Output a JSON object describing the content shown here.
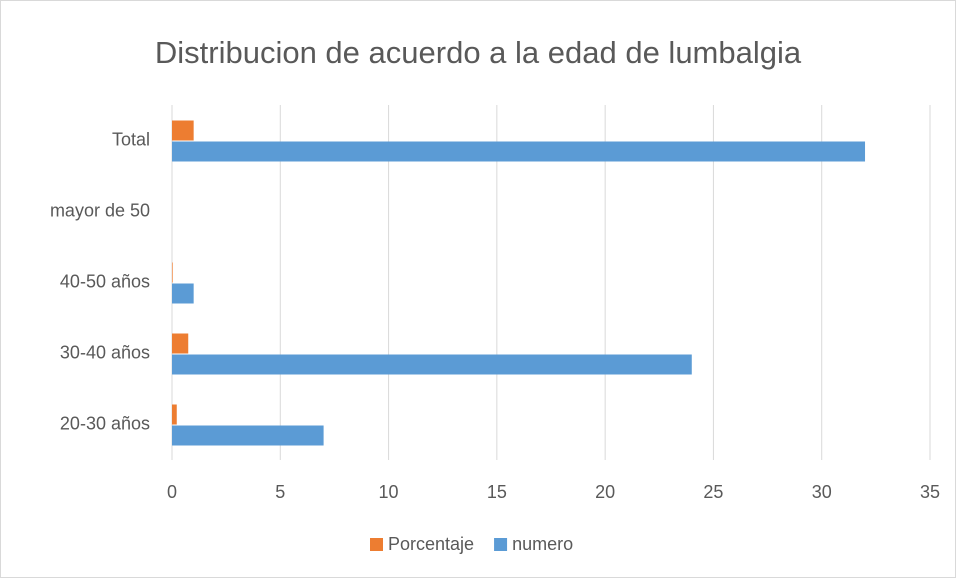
{
  "chart_data": {
    "type": "bar",
    "orientation": "horizontal",
    "title": "Distribucion de acuerdo a la edad de lumbalgia",
    "categories": [
      "20-30 años",
      "30-40 años",
      "40-50 años",
      "mayor de 50",
      "Total"
    ],
    "series": [
      {
        "name": "Porcentaje",
        "color": "#ed7d31",
        "values": [
          0.22,
          0.75,
          0.03,
          0,
          1
        ]
      },
      {
        "name": "numero",
        "color": "#5b9bd5",
        "values": [
          7,
          24,
          1,
          0,
          32
        ]
      }
    ],
    "xlim": [
      0,
      35
    ],
    "xticks": [
      0,
      5,
      10,
      15,
      20,
      25,
      30,
      35
    ],
    "grid": true,
    "legend": "bottom"
  }
}
